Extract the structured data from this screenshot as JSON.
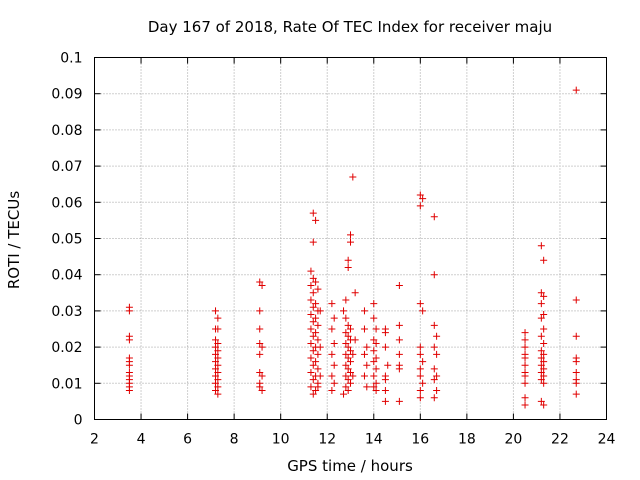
{
  "chart_data": {
    "type": "scatter",
    "title": "Day 167 of 2018, Rate Of TEC Index for receiver maju",
    "xlabel": "GPS time / hours",
    "ylabel": "ROTI / TECUs",
    "xlim": [
      2,
      24
    ],
    "ylim": [
      0,
      0.1
    ],
    "xticks": [
      2,
      4,
      6,
      8,
      10,
      12,
      14,
      16,
      18,
      20,
      22,
      24
    ],
    "yticks": [
      0,
      0.01,
      0.02,
      0.03,
      0.04,
      0.05,
      0.06,
      0.07,
      0.08,
      0.09,
      0.1
    ],
    "xtick_labels": [
      "2",
      "4",
      "6",
      "8",
      "10",
      "12",
      "14",
      "16",
      "18",
      "20",
      "22",
      "24"
    ],
    "ytick_labels": [
      "0",
      "0.01",
      "0.02",
      "0.03",
      "0.04",
      "0.05",
      "0.06",
      "0.07",
      "0.08",
      "0.09",
      "0.1"
    ],
    "grid": true,
    "marker": "+",
    "color": "#e00000",
    "series": [
      {
        "name": "ROTI",
        "points": [
          [
            3.5,
            0.031
          ],
          [
            3.5,
            0.03
          ],
          [
            3.5,
            0.023
          ],
          [
            3.5,
            0.022
          ],
          [
            3.5,
            0.017
          ],
          [
            3.5,
            0.016
          ],
          [
            3.5,
            0.015
          ],
          [
            3.5,
            0.013
          ],
          [
            3.5,
            0.012
          ],
          [
            3.5,
            0.011
          ],
          [
            3.5,
            0.01
          ],
          [
            3.5,
            0.009
          ],
          [
            3.5,
            0.008
          ],
          [
            7.2,
            0.03
          ],
          [
            7.3,
            0.028
          ],
          [
            7.2,
            0.025
          ],
          [
            7.3,
            0.025
          ],
          [
            7.2,
            0.022
          ],
          [
            7.3,
            0.021
          ],
          [
            7.2,
            0.02
          ],
          [
            7.3,
            0.019
          ],
          [
            7.2,
            0.018
          ],
          [
            7.3,
            0.017
          ],
          [
            7.2,
            0.016
          ],
          [
            7.3,
            0.015
          ],
          [
            7.2,
            0.014
          ],
          [
            7.3,
            0.013
          ],
          [
            7.2,
            0.012
          ],
          [
            7.3,
            0.011
          ],
          [
            7.2,
            0.01
          ],
          [
            7.3,
            0.009
          ],
          [
            7.2,
            0.008
          ],
          [
            7.3,
            0.007
          ],
          [
            9.1,
            0.038
          ],
          [
            9.2,
            0.037
          ],
          [
            9.1,
            0.03
          ],
          [
            9.1,
            0.025
          ],
          [
            9.1,
            0.021
          ],
          [
            9.2,
            0.02
          ],
          [
            9.1,
            0.018
          ],
          [
            9.1,
            0.013
          ],
          [
            9.2,
            0.012
          ],
          [
            9.1,
            0.01
          ],
          [
            9.1,
            0.009
          ],
          [
            9.2,
            0.008
          ],
          [
            11.4,
            0.057
          ],
          [
            11.5,
            0.055
          ],
          [
            11.4,
            0.049
          ],
          [
            11.3,
            0.041
          ],
          [
            11.4,
            0.039
          ],
          [
            11.5,
            0.038
          ],
          [
            11.3,
            0.037
          ],
          [
            11.4,
            0.035
          ],
          [
            11.6,
            0.036
          ],
          [
            11.3,
            0.033
          ],
          [
            11.5,
            0.032
          ],
          [
            11.4,
            0.031
          ],
          [
            11.6,
            0.03
          ],
          [
            11.3,
            0.029
          ],
          [
            11.5,
            0.028
          ],
          [
            11.4,
            0.027
          ],
          [
            11.6,
            0.026
          ],
          [
            11.3,
            0.025
          ],
          [
            11.5,
            0.024
          ],
          [
            11.4,
            0.023
          ],
          [
            11.6,
            0.022
          ],
          [
            11.3,
            0.021
          ],
          [
            11.5,
            0.02
          ],
          [
            11.4,
            0.019
          ],
          [
            11.6,
            0.018
          ],
          [
            11.3,
            0.017
          ],
          [
            11.5,
            0.016
          ],
          [
            11.4,
            0.015
          ],
          [
            11.6,
            0.014
          ],
          [
            11.3,
            0.013
          ],
          [
            11.5,
            0.012
          ],
          [
            11.4,
            0.011
          ],
          [
            11.6,
            0.01
          ],
          [
            11.3,
            0.009
          ],
          [
            11.5,
            0.008
          ],
          [
            11.4,
            0.007
          ],
          [
            11.6,
            0.009
          ],
          [
            11.7,
            0.02
          ],
          [
            11.7,
            0.03
          ],
          [
            11.7,
            0.012
          ],
          [
            12.2,
            0.032
          ],
          [
            12.3,
            0.028
          ],
          [
            12.2,
            0.025
          ],
          [
            12.3,
            0.021
          ],
          [
            12.2,
            0.018
          ],
          [
            12.3,
            0.015
          ],
          [
            12.2,
            0.012
          ],
          [
            12.3,
            0.01
          ],
          [
            12.2,
            0.008
          ],
          [
            12.7,
            0.03
          ],
          [
            12.8,
            0.033
          ],
          [
            12.9,
            0.044
          ],
          [
            12.9,
            0.042
          ],
          [
            13.0,
            0.051
          ],
          [
            13.0,
            0.049
          ],
          [
            13.1,
            0.067
          ],
          [
            12.8,
            0.028
          ],
          [
            12.9,
            0.026
          ],
          [
            13.0,
            0.025
          ],
          [
            12.8,
            0.024
          ],
          [
            12.9,
            0.023
          ],
          [
            13.0,
            0.022
          ],
          [
            12.8,
            0.021
          ],
          [
            12.9,
            0.02
          ],
          [
            13.0,
            0.019
          ],
          [
            12.8,
            0.018
          ],
          [
            12.9,
            0.017
          ],
          [
            13.0,
            0.016
          ],
          [
            12.8,
            0.015
          ],
          [
            12.9,
            0.014
          ],
          [
            13.0,
            0.013
          ],
          [
            12.8,
            0.012
          ],
          [
            12.9,
            0.011
          ],
          [
            13.0,
            0.01
          ],
          [
            12.8,
            0.009
          ],
          [
            12.9,
            0.008
          ],
          [
            12.7,
            0.007
          ],
          [
            13.2,
            0.035
          ],
          [
            13.2,
            0.022
          ],
          [
            13.1,
            0.018
          ],
          [
            13.1,
            0.012
          ],
          [
            13.6,
            0.03
          ],
          [
            13.6,
            0.025
          ],
          [
            13.7,
            0.02
          ],
          [
            13.6,
            0.018
          ],
          [
            13.7,
            0.015
          ],
          [
            13.6,
            0.012
          ],
          [
            13.7,
            0.009
          ],
          [
            14.0,
            0.032
          ],
          [
            14.0,
            0.028
          ],
          [
            14.1,
            0.025
          ],
          [
            14.0,
            0.022
          ],
          [
            14.1,
            0.021
          ],
          [
            14.0,
            0.019
          ],
          [
            14.1,
            0.017
          ],
          [
            14.0,
            0.016
          ],
          [
            14.1,
            0.014
          ],
          [
            14.0,
            0.012
          ],
          [
            14.1,
            0.01
          ],
          [
            14.0,
            0.009
          ],
          [
            14.1,
            0.008
          ],
          [
            14.5,
            0.025
          ],
          [
            14.5,
            0.024
          ],
          [
            14.5,
            0.02
          ],
          [
            14.6,
            0.015
          ],
          [
            14.5,
            0.012
          ],
          [
            14.5,
            0.011
          ],
          [
            14.5,
            0.008
          ],
          [
            14.5,
            0.005
          ],
          [
            15.1,
            0.037
          ],
          [
            15.1,
            0.026
          ],
          [
            15.1,
            0.022
          ],
          [
            15.1,
            0.018
          ],
          [
            15.1,
            0.015
          ],
          [
            15.1,
            0.014
          ],
          [
            15.1,
            0.005
          ],
          [
            16.0,
            0.062
          ],
          [
            16.1,
            0.061
          ],
          [
            16.0,
            0.059
          ],
          [
            16.0,
            0.032
          ],
          [
            16.1,
            0.03
          ],
          [
            16.0,
            0.02
          ],
          [
            16.0,
            0.018
          ],
          [
            16.1,
            0.016
          ],
          [
            16.0,
            0.014
          ],
          [
            16.0,
            0.012
          ],
          [
            16.1,
            0.01
          ],
          [
            16.0,
            0.008
          ],
          [
            16.0,
            0.006
          ],
          [
            16.6,
            0.056
          ],
          [
            16.6,
            0.04
          ],
          [
            16.6,
            0.026
          ],
          [
            16.7,
            0.023
          ],
          [
            16.6,
            0.02
          ],
          [
            16.7,
            0.018
          ],
          [
            16.6,
            0.014
          ],
          [
            16.7,
            0.012
          ],
          [
            16.6,
            0.011
          ],
          [
            16.7,
            0.008
          ],
          [
            16.6,
            0.006
          ],
          [
            20.5,
            0.024
          ],
          [
            20.5,
            0.022
          ],
          [
            20.5,
            0.02
          ],
          [
            20.5,
            0.018
          ],
          [
            20.5,
            0.017
          ],
          [
            20.5,
            0.015
          ],
          [
            20.5,
            0.013
          ],
          [
            20.5,
            0.012
          ],
          [
            20.5,
            0.01
          ],
          [
            20.5,
            0.006
          ],
          [
            20.5,
            0.004
          ],
          [
            21.2,
            0.048
          ],
          [
            21.3,
            0.044
          ],
          [
            21.2,
            0.035
          ],
          [
            21.3,
            0.034
          ],
          [
            21.2,
            0.032
          ],
          [
            21.3,
            0.029
          ],
          [
            21.2,
            0.028
          ],
          [
            21.3,
            0.025
          ],
          [
            21.2,
            0.023
          ],
          [
            21.3,
            0.021
          ],
          [
            21.2,
            0.019
          ],
          [
            21.3,
            0.018
          ],
          [
            21.2,
            0.017
          ],
          [
            21.3,
            0.016
          ],
          [
            21.2,
            0.015
          ],
          [
            21.3,
            0.014
          ],
          [
            21.2,
            0.013
          ],
          [
            21.3,
            0.012
          ],
          [
            21.2,
            0.011
          ],
          [
            21.3,
            0.01
          ],
          [
            21.2,
            0.005
          ],
          [
            21.3,
            0.004
          ],
          [
            22.7,
            0.091
          ],
          [
            22.7,
            0.033
          ],
          [
            22.7,
            0.023
          ],
          [
            22.7,
            0.017
          ],
          [
            22.7,
            0.016
          ],
          [
            22.7,
            0.013
          ],
          [
            22.7,
            0.011
          ],
          [
            22.7,
            0.01
          ],
          [
            22.7,
            0.007
          ]
        ]
      }
    ]
  }
}
